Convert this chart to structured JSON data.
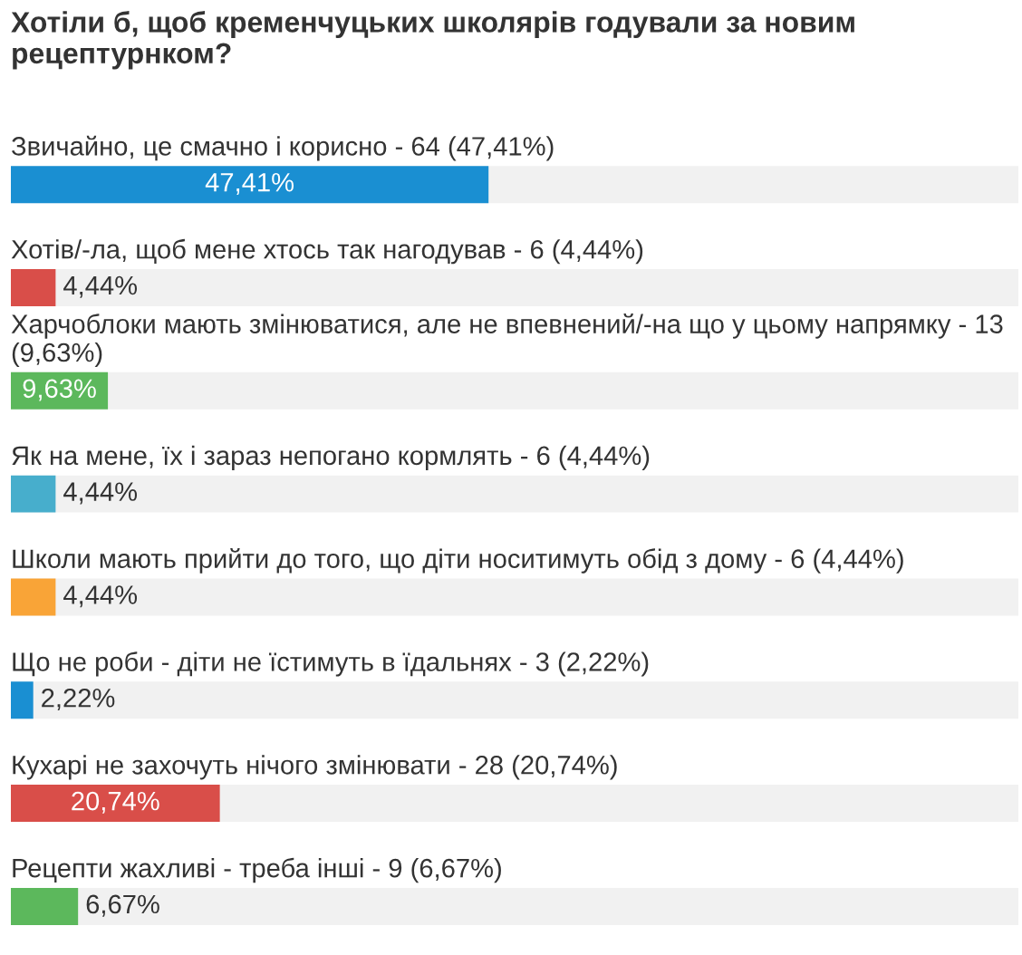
{
  "chart_data": {
    "type": "bar",
    "orientation": "horizontal",
    "title": "Хотіли б, щоб кременчуцьких школярів годували за новим рецептурнком?",
    "categories": [
      "Звичайно, це смачно і корисно - 64 (47,41%)",
      "Хотів/-ла, щоб мене хтось так нагодував - 6 (4,44%)",
      "Харчоблоки мають змінюватися, але не впевнений/-на що у цьому напрямку - 13 (9,63%)",
      "Як на мене, їх і зараз непогано кормлять - 6 (4,44%)",
      "Школи мають прийти до того, що діти носитимуть обід з дому - 6 (4,44%)",
      "Що не роби - діти не їстимуть в їдальнях - 3 (2,22%)",
      "Кухарі не захочуть нічого змінювати - 28 (20,74%)",
      "Рецепти жахливі - треба інші - 9 (6,67%)"
    ],
    "values": [
      47.41,
      4.44,
      9.63,
      4.44,
      4.44,
      2.22,
      20.74,
      6.67
    ],
    "colors": [
      "#1a8fd2",
      "#d94e49",
      "#5cb85c",
      "#47aecc",
      "#f9a437",
      "#1a8fd2",
      "#d94e49",
      "#5cb85c"
    ],
    "value_labels": [
      "47,41%",
      "4,44%",
      "9,63%",
      "4,44%",
      "4,44%",
      "2,22%",
      "20,74%",
      "6,67%"
    ],
    "xlim": [
      0,
      100
    ],
    "tick_labels": "y"
  }
}
